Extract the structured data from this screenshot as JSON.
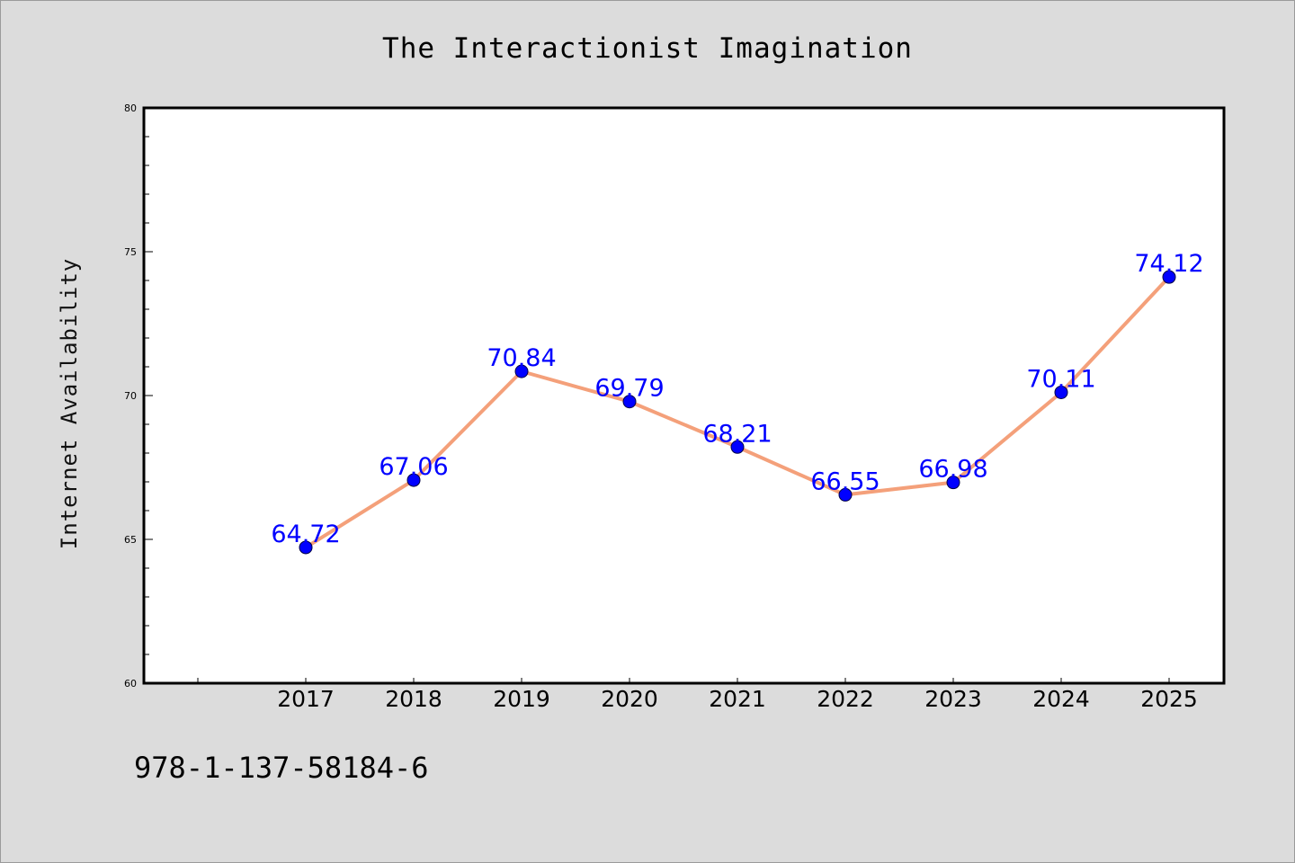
{
  "chart_data": {
    "type": "line",
    "title": "The Interactionist Imagination",
    "ylabel": "Internet Availability",
    "xlabel": "",
    "categories": [
      "2017",
      "2018",
      "2019",
      "2020",
      "2021",
      "2022",
      "2023",
      "2024",
      "2025"
    ],
    "series": [
      {
        "values": [
          64.72,
          67.06,
          70.84,
          69.79,
          68.21,
          66.55,
          66.98,
          70.11,
          74.12
        ],
        "line_color": "#f4a07a",
        "marker_color": "#0000ff"
      }
    ],
    "data_labels": [
      "64.72",
      "67.06",
      "70.84",
      "69.79",
      "68.21",
      "66.55",
      "66.98",
      "70.11",
      "74.12"
    ],
    "ylim": [
      60,
      80
    ],
    "y_major_ticks": [
      "60",
      "65",
      "70",
      "75",
      "80"
    ],
    "y_minor_step": 1,
    "grid": false,
    "legend": "none",
    "plot_background": "#ffffff",
    "figure_background": "#dcdcdc",
    "label_color": "#0000ff"
  },
  "footer": {
    "isbn": "978-1-137-58184-6"
  }
}
